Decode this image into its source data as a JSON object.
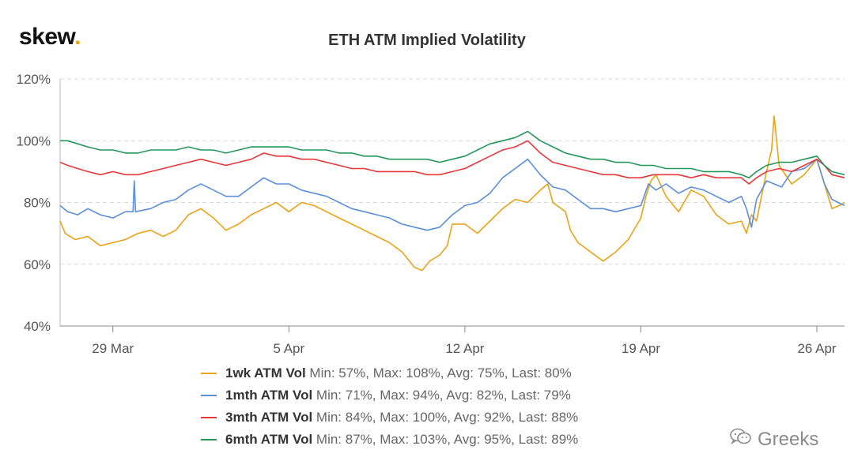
{
  "brand": {
    "name": "skew",
    "dot": "."
  },
  "watermark": {
    "text": "Greeks",
    "icon": "wechat-icon"
  },
  "chart_data": {
    "type": "line",
    "title": "ETH ATM Implied Volatility",
    "x_tick_labels": [
      "29 Mar",
      "5 Apr",
      "12 Apr",
      "19 Apr",
      "26 Apr"
    ],
    "x_tick_days": [
      29,
      36,
      43,
      50,
      57
    ],
    "x_range_days": [
      26.9,
      58.1
    ],
    "x_day_reference": "day 29 = 29 Mar",
    "y_ticks": [
      40,
      60,
      80,
      100,
      120
    ],
    "y_tick_labels": [
      "40%",
      "60%",
      "80%",
      "100%",
      "120%"
    ],
    "ylim": [
      40,
      120
    ],
    "grid": true,
    "legend_position": "bottom",
    "series": [
      {
        "name": "1wk ATM Vol",
        "stats": "Min: 57%, Max: 108%, Avg: 75%, Last: 80%",
        "color": "#e8a317",
        "points": [
          [
            26.9,
            74
          ],
          [
            27.1,
            70
          ],
          [
            27.5,
            68
          ],
          [
            28,
            69
          ],
          [
            28.5,
            66
          ],
          [
            29,
            67
          ],
          [
            29.5,
            68
          ],
          [
            30,
            70
          ],
          [
            30.5,
            71
          ],
          [
            31,
            69
          ],
          [
            31.5,
            71
          ],
          [
            32,
            76
          ],
          [
            32.5,
            78
          ],
          [
            33,
            75
          ],
          [
            33.5,
            71
          ],
          [
            34,
            73
          ],
          [
            34.5,
            76
          ],
          [
            35,
            78
          ],
          [
            35.5,
            80
          ],
          [
            36,
            77
          ],
          [
            36.5,
            80
          ],
          [
            37,
            79
          ],
          [
            37.5,
            77
          ],
          [
            38,
            75
          ],
          [
            38.5,
            73
          ],
          [
            39,
            71
          ],
          [
            39.5,
            69
          ],
          [
            40,
            67
          ],
          [
            40.5,
            64
          ],
          [
            41,
            59
          ],
          [
            41.3,
            58
          ],
          [
            41.6,
            61
          ],
          [
            42,
            63
          ],
          [
            42.3,
            66
          ],
          [
            42.5,
            73
          ],
          [
            43,
            73
          ],
          [
            43.5,
            70
          ],
          [
            44,
            74
          ],
          [
            44.5,
            78
          ],
          [
            45,
            81
          ],
          [
            45.5,
            80
          ],
          [
            46,
            84
          ],
          [
            46.3,
            86
          ],
          [
            46.5,
            80
          ],
          [
            47,
            77
          ],
          [
            47.2,
            71
          ],
          [
            47.5,
            67
          ],
          [
            48,
            64
          ],
          [
            48.5,
            61
          ],
          [
            49,
            64
          ],
          [
            49.5,
            68
          ],
          [
            50,
            75
          ],
          [
            50.2,
            82
          ],
          [
            50.4,
            87
          ],
          [
            50.6,
            89
          ],
          [
            51,
            82
          ],
          [
            51.5,
            77
          ],
          [
            52,
            84
          ],
          [
            52.5,
            82
          ],
          [
            53,
            76
          ],
          [
            53.5,
            73
          ],
          [
            54,
            74
          ],
          [
            54.2,
            70
          ],
          [
            54.4,
            76
          ],
          [
            54.6,
            74
          ],
          [
            55,
            90
          ],
          [
            55.2,
            97
          ],
          [
            55.3,
            108
          ],
          [
            55.5,
            92
          ],
          [
            56,
            86
          ],
          [
            56.5,
            89
          ],
          [
            57,
            94
          ],
          [
            57.3,
            86
          ],
          [
            57.6,
            78
          ],
          [
            57.9,
            79
          ],
          [
            58.1,
            80
          ]
        ]
      },
      {
        "name": "1mth ATM Vol",
        "stats": "Min: 71%, Max: 94%, Avg: 82%, Last: 79%",
        "color": "#5b8fd8",
        "points": [
          [
            26.9,
            79
          ],
          [
            27.2,
            77
          ],
          [
            27.6,
            76
          ],
          [
            28,
            78
          ],
          [
            28.5,
            76
          ],
          [
            29,
            75
          ],
          [
            29.5,
            77
          ],
          [
            29.8,
            77
          ],
          [
            29.85,
            87
          ],
          [
            29.9,
            77
          ],
          [
            30.5,
            78
          ],
          [
            31,
            80
          ],
          [
            31.5,
            81
          ],
          [
            32,
            84
          ],
          [
            32.5,
            86
          ],
          [
            33,
            84
          ],
          [
            33.5,
            82
          ],
          [
            34,
            82
          ],
          [
            34.5,
            85
          ],
          [
            35,
            88
          ],
          [
            35.5,
            86
          ],
          [
            36,
            86
          ],
          [
            36.5,
            84
          ],
          [
            37,
            83
          ],
          [
            37.5,
            82
          ],
          [
            38,
            80
          ],
          [
            38.5,
            78
          ],
          [
            39,
            77
          ],
          [
            39.5,
            76
          ],
          [
            40,
            75
          ],
          [
            40.5,
            73
          ],
          [
            41,
            72
          ],
          [
            41.5,
            71
          ],
          [
            42,
            72
          ],
          [
            42.5,
            76
          ],
          [
            43,
            79
          ],
          [
            43.5,
            80
          ],
          [
            44,
            83
          ],
          [
            44.5,
            88
          ],
          [
            45,
            91
          ],
          [
            45.5,
            94
          ],
          [
            46,
            89
          ],
          [
            46.5,
            85
          ],
          [
            47,
            84
          ],
          [
            47.5,
            81
          ],
          [
            48,
            78
          ],
          [
            48.5,
            78
          ],
          [
            49,
            77
          ],
          [
            49.5,
            78
          ],
          [
            50,
            79
          ],
          [
            50.3,
            86
          ],
          [
            50.6,
            84
          ],
          [
            51,
            86
          ],
          [
            51.5,
            83
          ],
          [
            52,
            85
          ],
          [
            52.5,
            84
          ],
          [
            53,
            82
          ],
          [
            53.5,
            80
          ],
          [
            54,
            82
          ],
          [
            54.2,
            78
          ],
          [
            54.4,
            72
          ],
          [
            54.6,
            81
          ],
          [
            55,
            87
          ],
          [
            55.3,
            86
          ],
          [
            55.6,
            85
          ],
          [
            56,
            90
          ],
          [
            56.5,
            91
          ],
          [
            57,
            94
          ],
          [
            57.3,
            86
          ],
          [
            57.6,
            81
          ],
          [
            58.1,
            79
          ]
        ]
      },
      {
        "name": "3mth ATM Vol",
        "stats": "Min: 84%, Max: 100%, Avg: 92%, Last: 88%",
        "color": "#e8373a",
        "points": [
          [
            26.9,
            93
          ],
          [
            27.2,
            92
          ],
          [
            27.6,
            91
          ],
          [
            28,
            90
          ],
          [
            28.5,
            89
          ],
          [
            29,
            90
          ],
          [
            29.5,
            89
          ],
          [
            30,
            89
          ],
          [
            30.5,
            90
          ],
          [
            31,
            91
          ],
          [
            31.5,
            92
          ],
          [
            32,
            93
          ],
          [
            32.5,
            94
          ],
          [
            33,
            93
          ],
          [
            33.5,
            92
          ],
          [
            34,
            93
          ],
          [
            34.5,
            94
          ],
          [
            35,
            96
          ],
          [
            35.5,
            95
          ],
          [
            36,
            95
          ],
          [
            36.5,
            94
          ],
          [
            37,
            94
          ],
          [
            37.5,
            93
          ],
          [
            38,
            92
          ],
          [
            38.5,
            91
          ],
          [
            39,
            91
          ],
          [
            39.5,
            90
          ],
          [
            40,
            90
          ],
          [
            40.5,
            90
          ],
          [
            41,
            90
          ],
          [
            41.5,
            89
          ],
          [
            42,
            89
          ],
          [
            42.5,
            90
          ],
          [
            43,
            91
          ],
          [
            43.5,
            93
          ],
          [
            44,
            95
          ],
          [
            44.5,
            97
          ],
          [
            45,
            98
          ],
          [
            45.5,
            100
          ],
          [
            46,
            96
          ],
          [
            46.5,
            93
          ],
          [
            47,
            92
          ],
          [
            47.5,
            91
          ],
          [
            48,
            90
          ],
          [
            48.5,
            89
          ],
          [
            49,
            89
          ],
          [
            49.5,
            88
          ],
          [
            50,
            88
          ],
          [
            50.5,
            89
          ],
          [
            51,
            89
          ],
          [
            51.5,
            89
          ],
          [
            52,
            88
          ],
          [
            52.5,
            89
          ],
          [
            53,
            88
          ],
          [
            53.5,
            88
          ],
          [
            54,
            88
          ],
          [
            54.3,
            86
          ],
          [
            54.6,
            88
          ],
          [
            55,
            90
          ],
          [
            55.5,
            91
          ],
          [
            56,
            90
          ],
          [
            56.5,
            92
          ],
          [
            57,
            94
          ],
          [
            57.3,
            92
          ],
          [
            57.6,
            89
          ],
          [
            58.1,
            88
          ]
        ]
      },
      {
        "name": "6mth ATM Vol",
        "stats": "Min: 87%, Max: 103%, Avg: 95%, Last: 89%",
        "color": "#23975a",
        "points": [
          [
            26.9,
            100
          ],
          [
            27.2,
            100
          ],
          [
            27.6,
            99
          ],
          [
            28,
            98
          ],
          [
            28.5,
            97
          ],
          [
            29,
            97
          ],
          [
            29.5,
            96
          ],
          [
            30,
            96
          ],
          [
            30.5,
            97
          ],
          [
            31,
            97
          ],
          [
            31.5,
            97
          ],
          [
            32,
            98
          ],
          [
            32.5,
            97
          ],
          [
            33,
            97
          ],
          [
            33.5,
            96
          ],
          [
            34,
            97
          ],
          [
            34.5,
            98
          ],
          [
            35,
            98
          ],
          [
            35.5,
            98
          ],
          [
            36,
            98
          ],
          [
            36.5,
            97
          ],
          [
            37,
            97
          ],
          [
            37.5,
            97
          ],
          [
            38,
            96
          ],
          [
            38.5,
            96
          ],
          [
            39,
            95
          ],
          [
            39.5,
            95
          ],
          [
            40,
            94
          ],
          [
            40.5,
            94
          ],
          [
            41,
            94
          ],
          [
            41.5,
            94
          ],
          [
            42,
            93
          ],
          [
            42.5,
            94
          ],
          [
            43,
            95
          ],
          [
            43.5,
            97
          ],
          [
            44,
            99
          ],
          [
            44.5,
            100
          ],
          [
            45,
            101
          ],
          [
            45.5,
            103
          ],
          [
            46,
            100
          ],
          [
            46.5,
            98
          ],
          [
            47,
            96
          ],
          [
            47.5,
            95
          ],
          [
            48,
            94
          ],
          [
            48.5,
            94
          ],
          [
            49,
            93
          ],
          [
            49.5,
            93
          ],
          [
            50,
            92
          ],
          [
            50.5,
            92
          ],
          [
            51,
            91
          ],
          [
            51.5,
            91
          ],
          [
            52,
            91
          ],
          [
            52.5,
            90
          ],
          [
            53,
            90
          ],
          [
            53.5,
            90
          ],
          [
            54,
            89
          ],
          [
            54.3,
            88
          ],
          [
            54.6,
            90
          ],
          [
            55,
            92
          ],
          [
            55.5,
            93
          ],
          [
            56,
            93
          ],
          [
            56.5,
            94
          ],
          [
            57,
            95
          ],
          [
            57.3,
            92
          ],
          [
            57.6,
            90
          ],
          [
            58.1,
            89
          ]
        ]
      }
    ]
  }
}
